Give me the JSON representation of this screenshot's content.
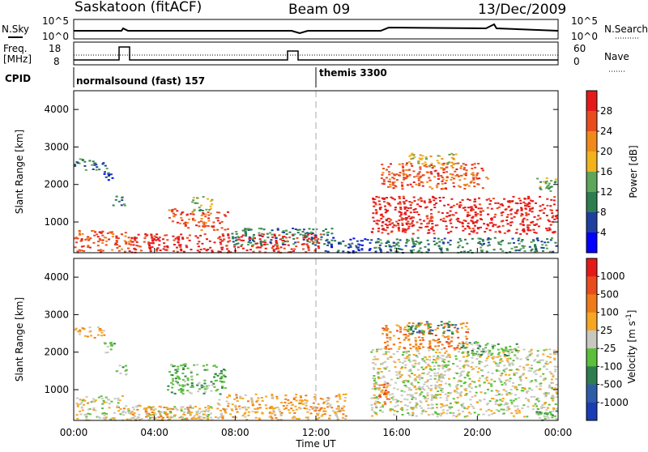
{
  "header": {
    "title": "Saskatoon (fitACF)",
    "beam": "Beam 09",
    "date": "13/Dec/2009"
  },
  "top_panels": {
    "nsky_label": "N.Sky",
    "nsky_ticks": [
      "10^5",
      "10^0"
    ],
    "nsearch_label": "N.Search",
    "nsearch_ticks": [
      "10^5",
      "10^0"
    ],
    "freq_label": "Freq.",
    "freq_unit": "[MHz]",
    "freq_ticks": [
      "18",
      "8"
    ],
    "nave_label": "Nave",
    "nave_ticks": [
      "60",
      "0"
    ],
    "cpid_label": "CPID",
    "cpid_segments": [
      {
        "text": "normalsound (fast) 157",
        "start_hr": 0
      },
      {
        "text": "themis 3300",
        "start_hr": 12
      }
    ]
  },
  "colors": {
    "power_scale": [
      "#0000ff",
      "#1f3fa0",
      "#2e7d4f",
      "#5fa55a",
      "#f2b21c",
      "#ef8a1a",
      "#e94b1f",
      "#e41a1a"
    ],
    "velocity_scale": [
      "#1a3db5",
      "#2e5da8",
      "#2e7d4f",
      "#5bbf3a",
      "#c8c8c0",
      "#f5a623",
      "#ef7a1a",
      "#e94b1f",
      "#e41a1a"
    ],
    "line": "#000000",
    "divider": "#aaaaaa"
  },
  "chart_data": [
    {
      "type": "heatmap",
      "name": "power",
      "xlabel": "Time UT",
      "ylabel": "Slant Range [km]",
      "xlim_hr": [
        0,
        24
      ],
      "ylim": [
        180,
        4500
      ],
      "yticks": [
        1000,
        2000,
        3000,
        4000
      ],
      "colorbar_label": "Power [dB]",
      "colorbar_ticks": [
        "28",
        "24",
        "20",
        "16",
        "12",
        "8",
        "4"
      ],
      "regions": [
        {
          "t0": 0.0,
          "t1": 2.8,
          "r0": 200,
          "r1": 800,
          "level": 6
        },
        {
          "t0": 0.0,
          "t1": 1.6,
          "r0": 2400,
          "r1": 2700,
          "level": 2
        },
        {
          "t0": 1.4,
          "t1": 2.0,
          "r0": 2100,
          "r1": 2400,
          "level": 1
        },
        {
          "t0": 1.9,
          "t1": 2.5,
          "r0": 1400,
          "r1": 1700,
          "level": 2
        },
        {
          "t0": 2.8,
          "t1": 12.2,
          "r0": 200,
          "r1": 700,
          "level": 7
        },
        {
          "t0": 4.6,
          "t1": 5.2,
          "r0": 1000,
          "r1": 1400,
          "level": 6
        },
        {
          "t0": 5.2,
          "t1": 7.6,
          "r0": 800,
          "r1": 1300,
          "level": 6
        },
        {
          "t0": 5.8,
          "t1": 6.8,
          "r0": 1300,
          "r1": 1700,
          "level": 3
        },
        {
          "t0": 7.8,
          "t1": 12.8,
          "r0": 400,
          "r1": 850,
          "level": 2
        },
        {
          "t0": 12.4,
          "t1": 14.7,
          "r0": 200,
          "r1": 600,
          "level": 1
        },
        {
          "t0": 14.7,
          "t1": 23.9,
          "r0": 700,
          "r1": 1700,
          "level": 7
        },
        {
          "t0": 15.2,
          "t1": 20.5,
          "r0": 1900,
          "r1": 2600,
          "level": 6
        },
        {
          "t0": 16.5,
          "t1": 19.0,
          "r0": 2500,
          "r1": 2850,
          "level": 4
        },
        {
          "t0": 14.7,
          "t1": 23.9,
          "r0": 200,
          "r1": 600,
          "level": 2
        },
        {
          "t0": 22.8,
          "t1": 23.9,
          "r0": 1800,
          "r1": 2200,
          "level": 3
        }
      ]
    },
    {
      "type": "heatmap",
      "name": "velocity",
      "xlabel": "Time UT",
      "ylabel": "Slant Range [km]",
      "xlim_hr": [
        0,
        24
      ],
      "ylim": [
        180,
        4500
      ],
      "yticks": [
        1000,
        2000,
        3000,
        4000
      ],
      "xticks": [
        "00:00",
        "04:00",
        "08:00",
        "12:00",
        "16:00",
        "20:00",
        "00:00"
      ],
      "colorbar_label": "Velocity [m s^-1]",
      "colorbar_ticks": [
        "1000",
        "500",
        "100",
        "25",
        "-25",
        "-100",
        "-500",
        "-1000"
      ],
      "regions": [
        {
          "t0": 0.0,
          "t1": 2.4,
          "r0": 200,
          "r1": 850,
          "level": 4
        },
        {
          "t0": 0.0,
          "t1": 1.6,
          "r0": 2400,
          "r1": 2700,
          "level": 5
        },
        {
          "t0": 1.3,
          "t1": 2.1,
          "r0": 2000,
          "r1": 2300,
          "level": 3
        },
        {
          "t0": 2.0,
          "t1": 2.6,
          "r0": 1400,
          "r1": 1700,
          "level": 3
        },
        {
          "t0": 2.4,
          "t1": 7.0,
          "r0": 200,
          "r1": 600,
          "level": 4
        },
        {
          "t0": 4.6,
          "t1": 7.5,
          "r0": 900,
          "r1": 1700,
          "level": 3
        },
        {
          "t0": 7.0,
          "t1": 13.5,
          "r0": 500,
          "r1": 900,
          "level": 5
        },
        {
          "t0": 2.4,
          "t1": 13.5,
          "r0": 200,
          "r1": 550,
          "level": 5
        },
        {
          "t0": 14.7,
          "t1": 23.9,
          "r0": 300,
          "r1": 2100,
          "level": 4
        },
        {
          "t0": 14.8,
          "t1": 15.6,
          "r0": 600,
          "r1": 1200,
          "level": 6
        },
        {
          "t0": 15.2,
          "t1": 19.5,
          "r0": 2100,
          "r1": 2800,
          "level": 6
        },
        {
          "t0": 16.5,
          "t1": 19.0,
          "r0": 2500,
          "r1": 2850,
          "level": 2
        },
        {
          "t0": 19.0,
          "t1": 22.0,
          "r0": 1900,
          "r1": 2300,
          "level": 3
        },
        {
          "t0": 22.8,
          "t1": 23.9,
          "r0": 200,
          "r1": 600,
          "level": 3
        }
      ]
    }
  ]
}
